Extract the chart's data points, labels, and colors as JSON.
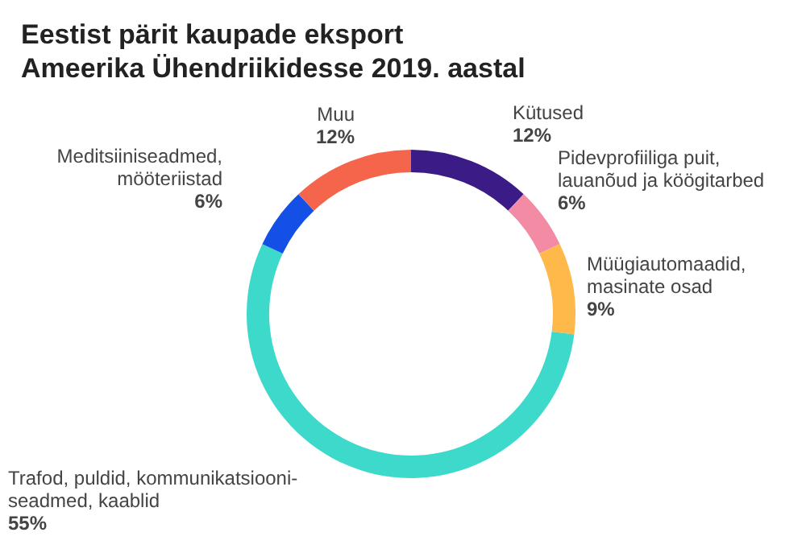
{
  "chart_data": {
    "type": "donut",
    "title": "Eestist pärit kaupade eksport Ameerika Ühendriikidesse 2019. aastal",
    "categories": [
      "Kütused",
      "Pidevprofiiliga puit, lauanõud ja köögitarbed",
      "Müügiautomaadid, masinate osad",
      "Trafod, puldid, kommunikatsiooni-seadmed, kaablid",
      "Meditsiiniseadmed, mööteriistad",
      "Muu"
    ],
    "values": [
      12,
      6,
      9,
      55,
      6,
      12
    ],
    "value_labels": [
      "12%",
      "6%",
      "9%",
      "55%",
      "6%",
      "12%"
    ],
    "colors": [
      "#3b1c86",
      "#f48ba5",
      "#ffb84a",
      "#3dd9cb",
      "#1550e6",
      "#f5654b"
    ],
    "legend": false
  }
}
